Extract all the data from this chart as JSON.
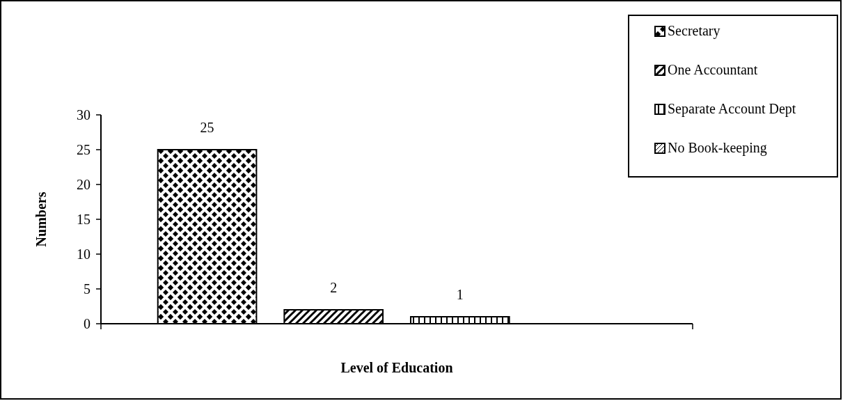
{
  "chart_data": {
    "type": "bar",
    "xlabel": "Level of Education",
    "ylabel": "Numbers",
    "categories": [
      null
    ],
    "series": [
      {
        "name": "Secretary",
        "color": "#000000",
        "values": [
          25
        ]
      },
      {
        "name": "One Accountant",
        "color": "#000000",
        "values": [
          2
        ]
      },
      {
        "name": "Separate Account Dept",
        "color": "#000000",
        "values": [
          1
        ]
      },
      {
        "name": "No Book-keeping",
        "color": "#000000",
        "values": [
          null
        ]
      }
    ],
    "ylim": [
      0,
      30
    ],
    "yticks": [
      0,
      5,
      10,
      15,
      20,
      25,
      30
    ],
    "data_labels": true,
    "legend": "top right"
  }
}
